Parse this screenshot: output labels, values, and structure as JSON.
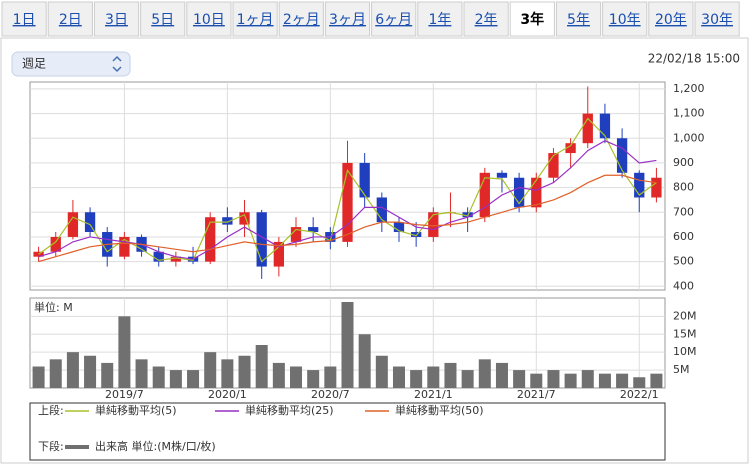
{
  "tabs": [
    "1日",
    "2日",
    "3日",
    "5日",
    "10日",
    "1ヶ月",
    "2ヶ月",
    "3ヶ月",
    "6ヶ月",
    "1年",
    "2年",
    "3年",
    "5年",
    "10年",
    "20年",
    "30年"
  ],
  "selected_tab": 11,
  "dropdown": "週足",
  "timestamp": "22/02/18 15:00",
  "legend_upper": "上段:",
  "legend_lower": "下段:",
  "chart_data": [
    {
      "type": "candlestick",
      "categories": [
        null,
        null,
        null,
        null,
        null,
        "2019/7",
        null,
        null,
        null,
        null,
        null,
        "2020/1",
        null,
        null,
        null,
        null,
        null,
        "2020/7",
        null,
        null,
        null,
        null,
        null,
        "2021/1",
        null,
        null,
        null,
        null,
        null,
        "2021/7",
        null,
        null,
        null,
        null,
        null,
        "2022/1",
        null
      ],
      "open": [
        520,
        540,
        600,
        700,
        620,
        520,
        600,
        540,
        500,
        520,
        500,
        680,
        650,
        700,
        480,
        580,
        640,
        620,
        580,
        900,
        760,
        660,
        620,
        600,
        700,
        700,
        680,
        860,
        840,
        720,
        840,
        940,
        980,
        1100,
        1000,
        860,
        760
      ],
      "high": [
        560,
        620,
        750,
        720,
        640,
        620,
        610,
        560,
        540,
        560,
        700,
        720,
        750,
        710,
        600,
        680,
        680,
        640,
        990,
        940,
        780,
        680,
        660,
        720,
        780,
        720,
        880,
        870,
        860,
        860,
        960,
        1000,
        1210,
        1140,
        1040,
        870,
        880
      ],
      "low": [
        500,
        520,
        590,
        600,
        480,
        510,
        520,
        480,
        480,
        490,
        490,
        620,
        600,
        430,
        440,
        560,
        580,
        550,
        560,
        720,
        620,
        580,
        560,
        580,
        640,
        620,
        660,
        780,
        700,
        700,
        820,
        880,
        960,
        980,
        840,
        700,
        740
      ],
      "close": [
        540,
        600,
        700,
        620,
        520,
        600,
        540,
        500,
        520,
        500,
        680,
        650,
        700,
        480,
        580,
        640,
        620,
        580,
        900,
        760,
        660,
        620,
        600,
        700,
        700,
        680,
        860,
        840,
        720,
        840,
        940,
        980,
        1100,
        1000,
        860,
        760,
        840
      ],
      "up_color": "#e02828",
      "down_color": "#1f3fbf",
      "series": [
        {
          "name": "単純移動平均(5)",
          "color": "#a8c02a",
          "values": [
            530,
            580,
            680,
            650,
            540,
            590,
            550,
            505,
            515,
            505,
            660,
            660,
            690,
            500,
            560,
            630,
            620,
            585,
            870,
            770,
            670,
            625,
            605,
            690,
            700,
            685,
            840,
            835,
            735,
            830,
            930,
            970,
            1080,
            1010,
            870,
            770,
            820
          ]
        },
        {
          "name": "単純移動平均(25)",
          "color": "#9a2fc4",
          "values": [
            520,
            540,
            580,
            600,
            590,
            580,
            570,
            540,
            520,
            510,
            550,
            600,
            640,
            600,
            560,
            580,
            600,
            600,
            650,
            720,
            720,
            680,
            640,
            630,
            660,
            680,
            720,
            770,
            800,
            790,
            820,
            880,
            950,
            990,
            960,
            900,
            910
          ]
        },
        {
          "name": "単純移動平均(50)",
          "color": "#e0602a",
          "values": [
            500,
            520,
            540,
            560,
            570,
            575,
            570,
            560,
            550,
            540,
            550,
            565,
            580,
            570,
            565,
            570,
            580,
            585,
            610,
            640,
            660,
            660,
            650,
            645,
            650,
            660,
            680,
            700,
            720,
            730,
            750,
            780,
            820,
            850,
            850,
            830,
            820
          ]
        }
      ],
      "ylim": [
        385,
        1228
      ],
      "yticks": [
        400,
        500,
        600,
        700,
        800,
        900,
        {
          "value": 1000,
          "label": "1,000"
        },
        {
          "value": 1100,
          "label": "1,100"
        },
        {
          "value": 1200,
          "label": "1,200"
        }
      ],
      "grid": true
    },
    {
      "type": "bar",
      "axis_label": "単位: M",
      "series": [
        {
          "name": "出来高 単位:(M株/口/枚)",
          "color": "#707070",
          "values": [
            6,
            8,
            10,
            9,
            7,
            20,
            8,
            6,
            5,
            5,
            10,
            8,
            9,
            12,
            7,
            6,
            5,
            6,
            24,
            15,
            9,
            6,
            5,
            6,
            7,
            5,
            8,
            7,
            5,
            4,
            5,
            4,
            5,
            4,
            4,
            3,
            4
          ]
        }
      ],
      "ylim": [
        0,
        24
      ],
      "yticks": [
        {
          "value": 5,
          "label": "5M"
        },
        {
          "value": 10,
          "label": "10M"
        },
        {
          "value": 15,
          "label": "15M"
        },
        {
          "value": 20,
          "label": "20M"
        }
      ],
      "grid": true
    }
  ]
}
